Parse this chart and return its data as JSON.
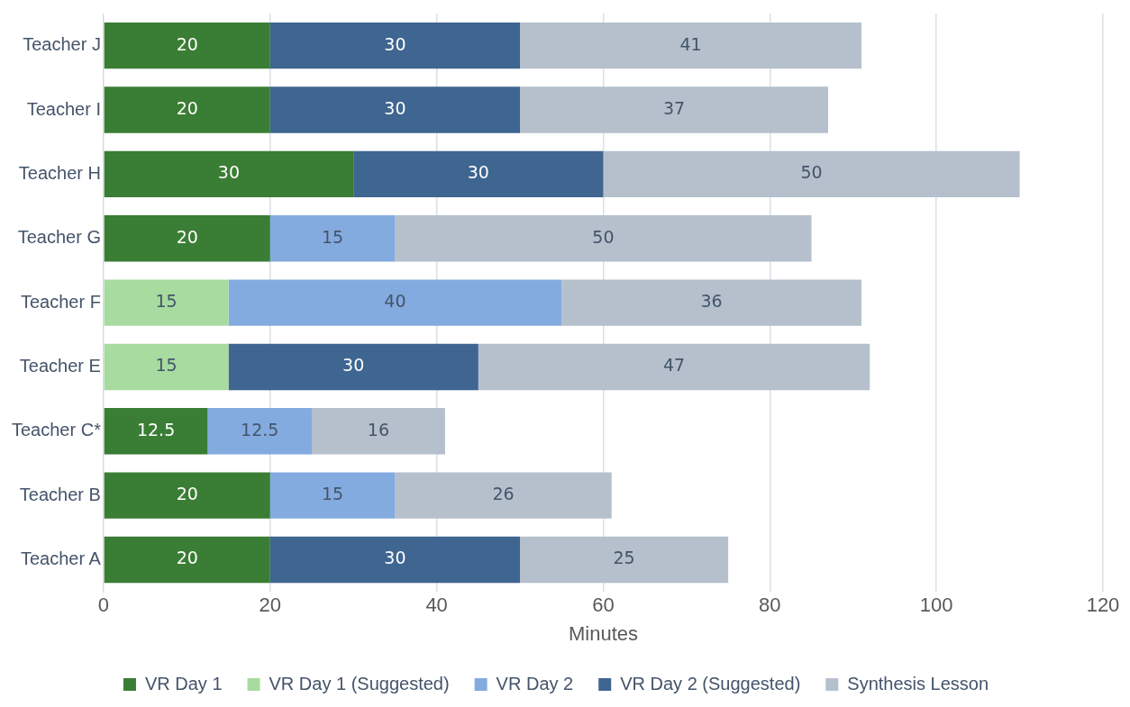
{
  "chart_data": {
    "type": "bar",
    "orientation": "horizontal",
    "stacked": true,
    "xlabel": "Minutes",
    "categories": [
      "Teacher J",
      "Teacher I",
      "Teacher H",
      "Teacher G",
      "Teacher F",
      "Teacher E",
      "Teacher C*",
      "Teacher B",
      "Teacher A"
    ],
    "series": [
      {
        "name": "VR Day 1",
        "color": "#3a7d34",
        "values": [
          20,
          20,
          30,
          20,
          null,
          null,
          12.5,
          20,
          20
        ]
      },
      {
        "name": "VR Day 1 (Suggested)",
        "color": "#a8dba0",
        "values": [
          null,
          null,
          null,
          null,
          15,
          15,
          null,
          null,
          null
        ]
      },
      {
        "name": "VR Day 2",
        "color": "#84abe0",
        "values": [
          null,
          null,
          null,
          15,
          40,
          null,
          12.5,
          15,
          null
        ]
      },
      {
        "name": "VR Day 2 (Suggested)",
        "color": "#3f6591",
        "values": [
          30,
          30,
          30,
          null,
          null,
          30,
          null,
          null,
          30
        ]
      },
      {
        "name": "Synthesis Lesson",
        "color": "#b5c0cc",
        "values": [
          41,
          37,
          50,
          50,
          36,
          47,
          16,
          26,
          25
        ]
      }
    ],
    "xlim": [
      0,
      120
    ],
    "xticks": [
      0,
      20,
      40,
      60,
      80,
      100,
      120
    ],
    "grid": "x",
    "legend": "bottom",
    "data_labels": true
  }
}
